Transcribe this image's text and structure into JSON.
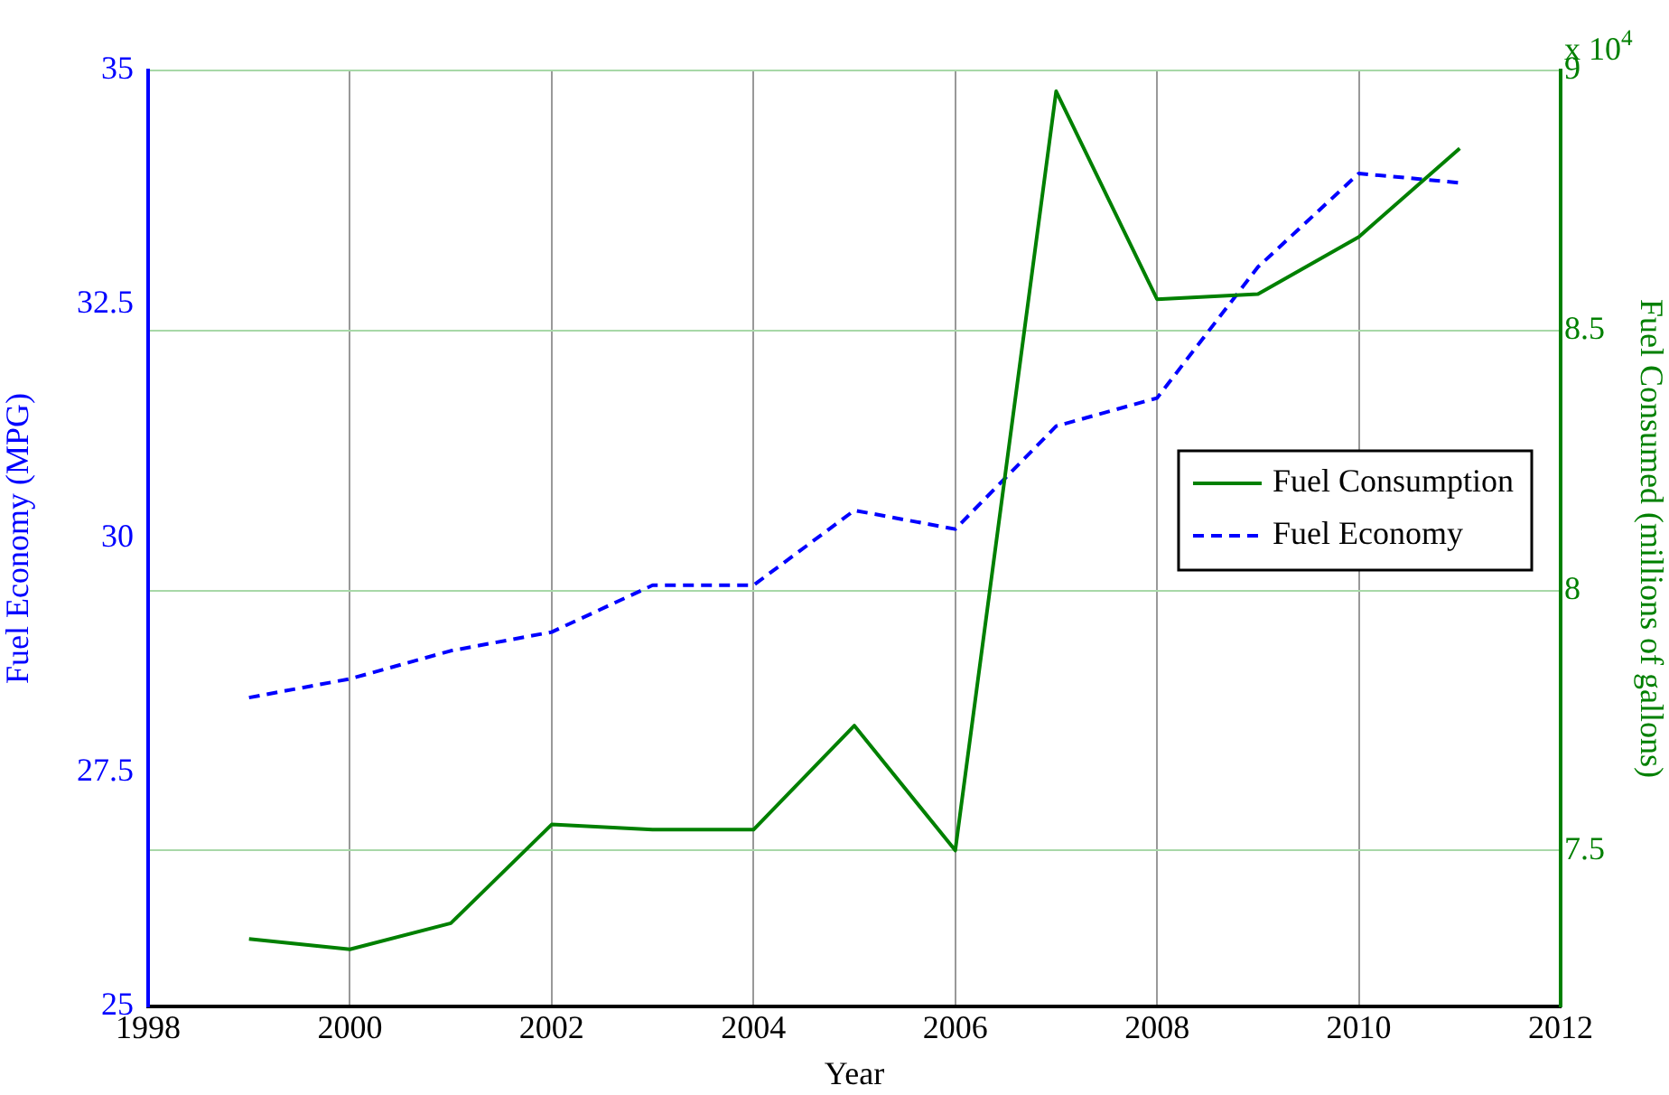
{
  "chart_data": {
    "type": "line",
    "xlabel": "Year",
    "ylabel": "Fuel Economy (MPG)",
    "y2label": "Fuel Consumed (millions of gallons)",
    "x": [
      1999,
      2000,
      2001,
      2002,
      2003,
      2004,
      2005,
      2006,
      2007,
      2008,
      2009,
      2010,
      2011
    ],
    "series": [
      {
        "name": "Fuel Consumption",
        "color": "#008000",
        "axis": "y2",
        "line_style": "solid",
        "values": [
          7.33,
          7.31,
          7.36,
          7.55,
          7.54,
          7.54,
          7.74,
          7.5,
          8.96,
          8.56,
          8.57,
          8.68,
          8.85
        ]
      },
      {
        "name": "Fuel Economy",
        "color": "#0000ff",
        "line_style": "dashed",
        "values": [
          28.3,
          28.5,
          28.8,
          29.0,
          29.5,
          29.5,
          30.3,
          30.1,
          31.2,
          31.5,
          32.9,
          33.9,
          33.8
        ]
      }
    ],
    "xlim": [
      1998,
      2012
    ],
    "xticks": [
      1998,
      2000,
      2002,
      2004,
      2006,
      2008,
      2010,
      2012
    ],
    "ylim": [
      25,
      35
    ],
    "yticks": [
      25,
      27.5,
      30,
      32.5,
      35
    ],
    "y2lim": [
      7.2,
      9
    ],
    "y2ticks": [
      7.5,
      8,
      8.5,
      9
    ],
    "annotations": [
      "x 10$^{4}$"
    ],
    "grid": true,
    "legend": "right",
    "marker": "none"
  }
}
